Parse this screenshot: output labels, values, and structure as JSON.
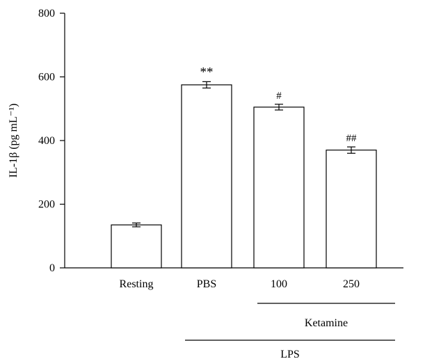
{
  "chart_data": {
    "type": "bar",
    "categories": [
      "Resting",
      "PBS",
      "100",
      "250"
    ],
    "values": [
      135,
      575,
      505,
      370
    ],
    "errors": [
      6,
      10,
      9,
      10
    ],
    "annotations": [
      "",
      "**",
      "#",
      "##"
    ],
    "ylabel": "IL-1β (pg mL⁻¹)",
    "ylim": [
      0,
      800
    ],
    "yticks": [
      0,
      200,
      400,
      600,
      800
    ],
    "grid": false,
    "groups": [
      {
        "label": "Ketamine",
        "categories": [
          "100",
          "250"
        ]
      },
      {
        "label": "LPS",
        "categories": [
          "PBS",
          "100",
          "250"
        ]
      }
    ],
    "colors": {
      "bar_fill": "#ffffff",
      "bar_stroke": "#000000",
      "axis": "#000000"
    }
  }
}
